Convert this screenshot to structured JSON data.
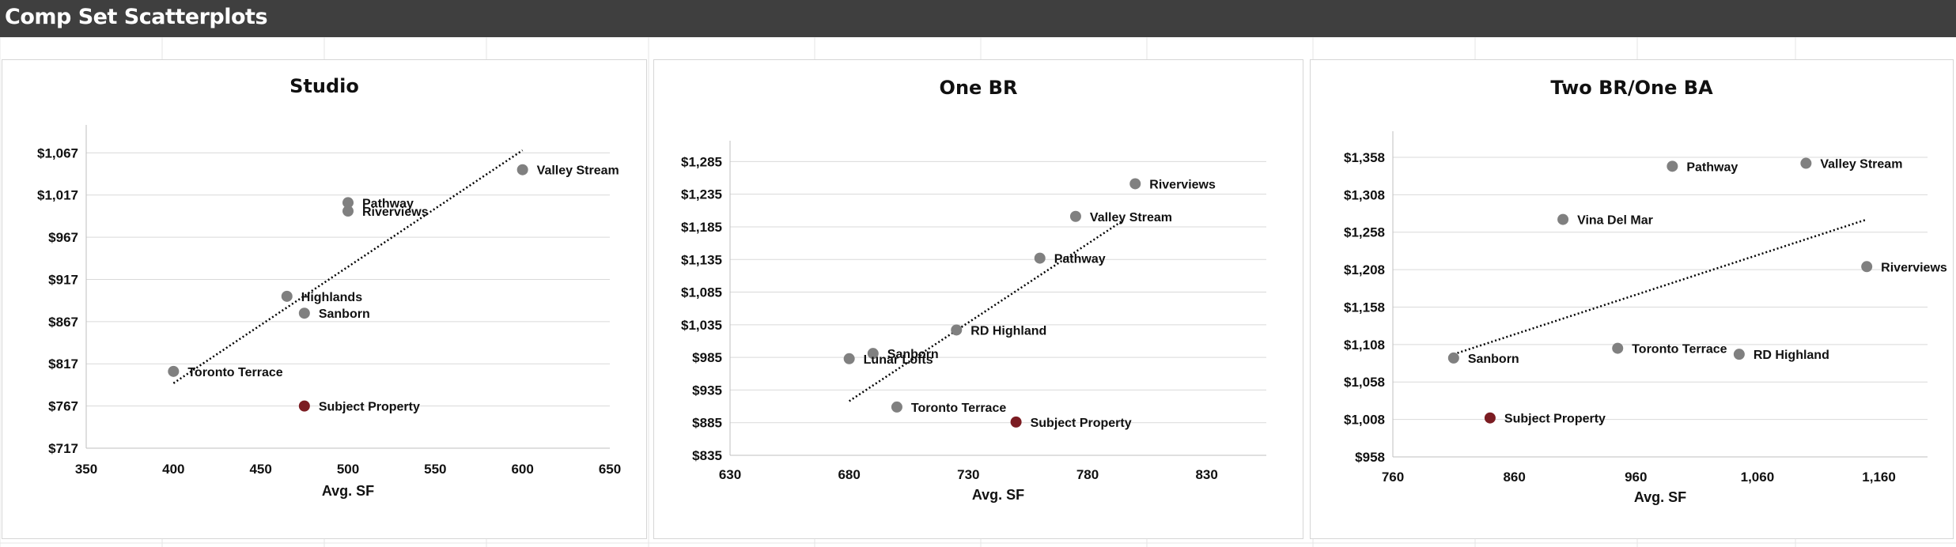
{
  "page": {
    "title": "Comp Set Scatterplots"
  },
  "colors": {
    "header_bg": "#3f3f3f",
    "header_text": "#ffffff",
    "point_comp": "#808080",
    "point_subject": "#7b1c22",
    "trendline": "#000000",
    "gridline": "#d9d9d9"
  },
  "chart_data": [
    {
      "type": "scatter",
      "title": "Studio",
      "xlabel": "Avg. SF",
      "ylabel": "",
      "xlim": [
        350,
        650
      ],
      "xticks": [
        350,
        400,
        450,
        500,
        550,
        600,
        650
      ],
      "xtick_labels": [
        "350",
        "400",
        "450",
        "500",
        "550",
        "600",
        "650"
      ],
      "ylim": [
        717,
        1087
      ],
      "yticks": [
        717,
        767,
        817,
        867,
        917,
        967,
        1017,
        1067
      ],
      "ytick_labels": [
        "$717",
        "$767",
        "$817",
        "$867",
        "$917",
        "$967",
        "$1,017",
        "$1,067"
      ],
      "gridlines": "horizontal",
      "trendline": {
        "style": "dotted",
        "x": [
          400,
          600
        ],
        "y": [
          794,
          1070
        ]
      },
      "points": [
        {
          "label": "Valley Stream",
          "x": 600,
          "y": 1047,
          "subject": false
        },
        {
          "label": "Pathway",
          "x": 500,
          "y": 1008,
          "subject": false
        },
        {
          "label": "Riverviews",
          "x": 500,
          "y": 998,
          "subject": false
        },
        {
          "label": "Highlands",
          "x": 465,
          "y": 897,
          "subject": false
        },
        {
          "label": "Sanborn",
          "x": 475,
          "y": 877,
          "subject": false
        },
        {
          "label": "Toronto Terrace",
          "x": 400,
          "y": 808,
          "subject": false
        },
        {
          "label": "Subject Property",
          "x": 475,
          "y": 767,
          "subject": true
        }
      ]
    },
    {
      "type": "scatter",
      "title": "One BR",
      "xlabel": "Avg. SF",
      "ylabel": "",
      "xlim": [
        630,
        855
      ],
      "xticks": [
        630,
        680,
        730,
        780,
        830
      ],
      "xtick_labels": [
        "630",
        "680",
        "730",
        "780",
        "830"
      ],
      "ylim": [
        835,
        1300
      ],
      "yticks": [
        835,
        885,
        935,
        985,
        1035,
        1085,
        1135,
        1185,
        1235,
        1285
      ],
      "ytick_labels": [
        "$835",
        "$885",
        "$935",
        "$985",
        "$1,035",
        "$1,085",
        "$1,135",
        "$1,185",
        "$1,235",
        "$1,285"
      ],
      "gridlines": "horizontal",
      "trendline": {
        "style": "dotted",
        "x": [
          680,
          795
        ],
        "y": [
          918,
          1195
        ]
      },
      "points": [
        {
          "label": "Riverviews",
          "x": 800,
          "y": 1251,
          "subject": false
        },
        {
          "label": "Valley Stream",
          "x": 775,
          "y": 1201,
          "subject": false
        },
        {
          "label": "Pathway",
          "x": 760,
          "y": 1137,
          "subject": false
        },
        {
          "label": "RD Highland",
          "x": 725,
          "y": 1027,
          "subject": false
        },
        {
          "label": "Sanborn",
          "x": 690,
          "y": 991,
          "subject": false
        },
        {
          "label": "Lunar Lofts",
          "x": 680,
          "y": 983,
          "subject": false
        },
        {
          "label": "Toronto Terrace",
          "x": 700,
          "y": 909,
          "subject": false
        },
        {
          "label": "Subject Property",
          "x": 750,
          "y": 886,
          "subject": true
        }
      ]
    },
    {
      "type": "scatter",
      "title": "Two BR/One BA",
      "xlabel": "Avg. SF",
      "ylabel": "",
      "xlim": [
        760,
        1200
      ],
      "xticks": [
        760,
        860,
        960,
        1060,
        1160
      ],
      "xtick_labels": [
        "760",
        "860",
        "960",
        "1,060",
        "1,160"
      ],
      "ylim": [
        958,
        1378
      ],
      "yticks": [
        958,
        1008,
        1058,
        1108,
        1158,
        1208,
        1258,
        1308,
        1358
      ],
      "ytick_labels": [
        "$958",
        "$1,008",
        "$1,058",
        "$1,108",
        "$1,158",
        "$1,208",
        "$1,258",
        "$1,308",
        "$1,358"
      ],
      "gridlines": "horizontal",
      "trendline": {
        "style": "dotted",
        "x": [
          810,
          1150
        ],
        "y": [
          1095,
          1275
        ]
      },
      "points": [
        {
          "label": "Valley Stream",
          "x": 1100,
          "y": 1350,
          "subject": false
        },
        {
          "label": "Pathway",
          "x": 990,
          "y": 1346,
          "subject": false
        },
        {
          "label": "Vina Del Mar",
          "x": 900,
          "y": 1275,
          "subject": false
        },
        {
          "label": "Riverviews",
          "x": 1150,
          "y": 1212,
          "subject": false
        },
        {
          "label": "Toronto Terrace",
          "x": 945,
          "y": 1103,
          "subject": false
        },
        {
          "label": "RD Highland",
          "x": 1045,
          "y": 1095,
          "subject": false
        },
        {
          "label": "Sanborn",
          "x": 810,
          "y": 1090,
          "subject": false
        },
        {
          "label": "Subject Property",
          "x": 840,
          "y": 1010,
          "subject": true
        }
      ]
    }
  ]
}
